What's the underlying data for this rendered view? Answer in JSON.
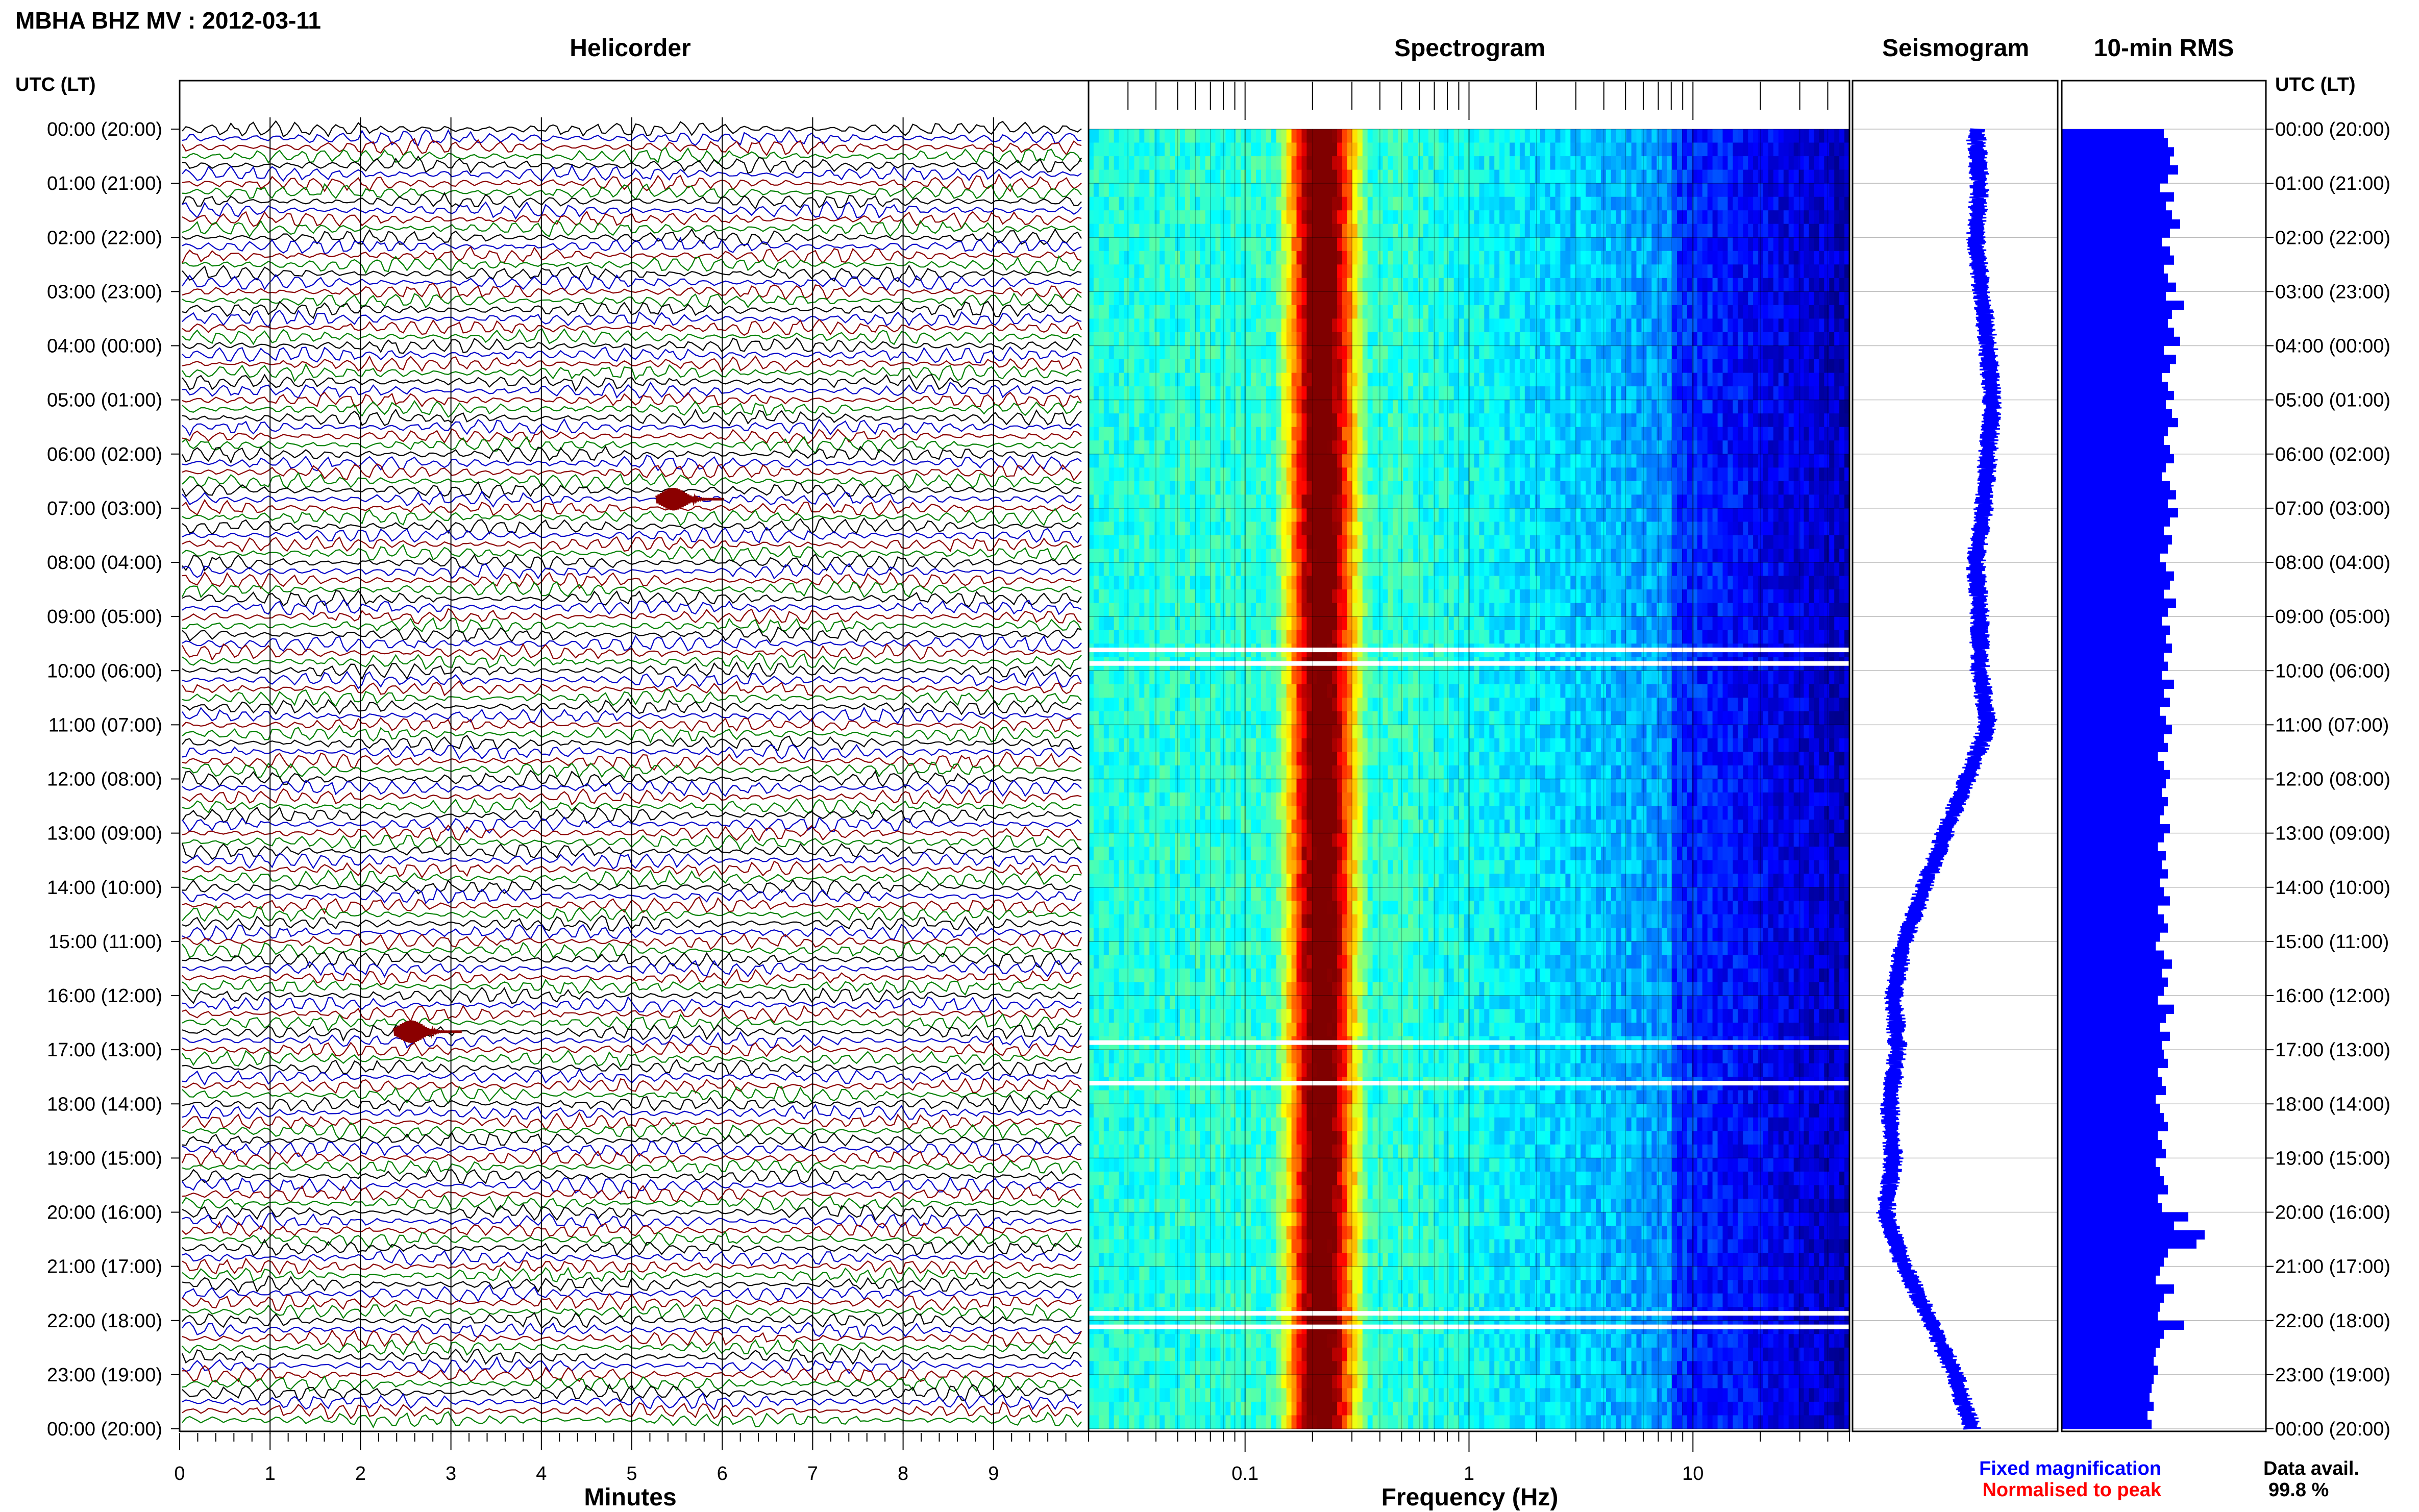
{
  "title": "MBHA BHZ MV : 2012-03-11",
  "utc_label": "UTC (LT)",
  "panels": {
    "helicorder": "Helicorder",
    "spectrogram": "Spectrogram",
    "seismogram": "Seismogram",
    "rms": "10-min RMS"
  },
  "time_labels": [
    "00:00 (20:00)",
    "01:00 (21:00)",
    "02:00 (22:00)",
    "03:00 (23:00)",
    "04:00 (00:00)",
    "05:00 (01:00)",
    "06:00 (02:00)",
    "07:00 (03:00)",
    "08:00 (04:00)",
    "09:00 (05:00)",
    "10:00 (06:00)",
    "11:00 (07:00)",
    "12:00 (08:00)",
    "13:00 (09:00)",
    "14:00 (10:00)",
    "15:00 (11:00)",
    "16:00 (12:00)",
    "17:00 (13:00)",
    "18:00 (14:00)",
    "19:00 (15:00)",
    "20:00 (16:00)",
    "21:00 (17:00)",
    "22:00 (18:00)",
    "23:00 (19:00)",
    "00:00 (20:00)"
  ],
  "legend": {
    "fixed": "Fixed magnification",
    "normalised": "Normalised to peak",
    "fixed_color": "#0000ff",
    "normalised_color": "#ff0000"
  },
  "data_avail": {
    "label": "Data avail.",
    "value": "99.8 %"
  },
  "chart_data": [
    {
      "type": "line",
      "panel": "helicorder",
      "title": "Helicorder",
      "xlabel": "Minutes",
      "xlim": [
        0,
        10
      ],
      "x_ticks": [
        "0",
        "1",
        "2",
        "3",
        "4",
        "5",
        "6",
        "7",
        "8",
        "9"
      ],
      "rows": 144,
      "trace_colors": [
        "#000000",
        "#0000c8",
        "#8b0000",
        "#008000"
      ],
      "events": [
        {
          "time": "06:50",
          "minute": 5.5,
          "color": "#8b0000"
        },
        {
          "time": "16:40",
          "minute": 2.6,
          "color": "#8b0000"
        }
      ]
    },
    {
      "type": "heatmap",
      "panel": "spectrogram",
      "title": "Spectrogram",
      "xlabel": "Frequency (Hz)",
      "xscale": "log",
      "xlim": [
        0.02,
        50
      ],
      "x_ticks": [
        "0.1",
        "1",
        "10"
      ],
      "peak_band_hz": [
        0.15,
        0.35
      ],
      "gaps_utc": [
        "09:30",
        "09:40",
        "16:40",
        "17:30",
        "21:50",
        "22:00"
      ]
    },
    {
      "type": "line",
      "panel": "seismogram",
      "title": "Seismogram",
      "offset_profile": [
        [
          0,
          0.6
        ],
        [
          1,
          0.62
        ],
        [
          2,
          0.6
        ],
        [
          3,
          0.63
        ],
        [
          4,
          0.66
        ],
        [
          5,
          0.68
        ],
        [
          6,
          0.66
        ],
        [
          7,
          0.64
        ],
        [
          8,
          0.6
        ],
        [
          9,
          0.62
        ],
        [
          10,
          0.62
        ],
        [
          11,
          0.66
        ],
        [
          12,
          0.56
        ],
        [
          13,
          0.45
        ],
        [
          14,
          0.35
        ],
        [
          15,
          0.25
        ],
        [
          16,
          0.2
        ],
        [
          17,
          0.22
        ],
        [
          18,
          0.18
        ],
        [
          19,
          0.2
        ],
        [
          20,
          0.16
        ],
        [
          21,
          0.25
        ],
        [
          22,
          0.38
        ],
        [
          23,
          0.5
        ],
        [
          24,
          0.58
        ]
      ]
    },
    {
      "type": "bar",
      "panel": "rms",
      "title": "10-min RMS",
      "orientation": "horizontal",
      "values": [
        0.5,
        0.52,
        0.55,
        0.53,
        0.57,
        0.52,
        0.48,
        0.55,
        0.51,
        0.54,
        0.58,
        0.53,
        0.49,
        0.53,
        0.55,
        0.5,
        0.52,
        0.56,
        0.51,
        0.6,
        0.54,
        0.52,
        0.55,
        0.58,
        0.5,
        0.56,
        0.53,
        0.49,
        0.52,
        0.55,
        0.51,
        0.54,
        0.57,
        0.52,
        0.5,
        0.53,
        0.55,
        0.51,
        0.49,
        0.53,
        0.56,
        0.52,
        0.57,
        0.53,
        0.5,
        0.54,
        0.52,
        0.48,
        0.51,
        0.55,
        0.53,
        0.5,
        0.56,
        0.52,
        0.49,
        0.53,
        0.51,
        0.54,
        0.5,
        0.52,
        0.49,
        0.55,
        0.5,
        0.53,
        0.48,
        0.51,
        0.54,
        0.5,
        0.52,
        0.47,
        0.5,
        0.53,
        0.51,
        0.49,
        0.52,
        0.5,
        0.48,
        0.53,
        0.5,
        0.47,
        0.51,
        0.49,
        0.52,
        0.48,
        0.5,
        0.53,
        0.47,
        0.5,
        0.52,
        0.48,
        0.46,
        0.5,
        0.54,
        0.49,
        0.52,
        0.5,
        0.47,
        0.55,
        0.51,
        0.48,
        0.53,
        0.49,
        0.5,
        0.52,
        0.47,
        0.49,
        0.51,
        0.46,
        0.48,
        0.5,
        0.52,
        0.47,
        0.49,
        0.51,
        0.46,
        0.48,
        0.5,
        0.52,
        0.47,
        0.49,
        0.62,
        0.55,
        0.7,
        0.66,
        0.52,
        0.5,
        0.48,
        0.46,
        0.55,
        0.5,
        0.48,
        0.47,
        0.6,
        0.5,
        0.48,
        0.46,
        0.45,
        0.47,
        0.45,
        0.44,
        0.43,
        0.45,
        0.42,
        0.44
      ]
    }
  ]
}
